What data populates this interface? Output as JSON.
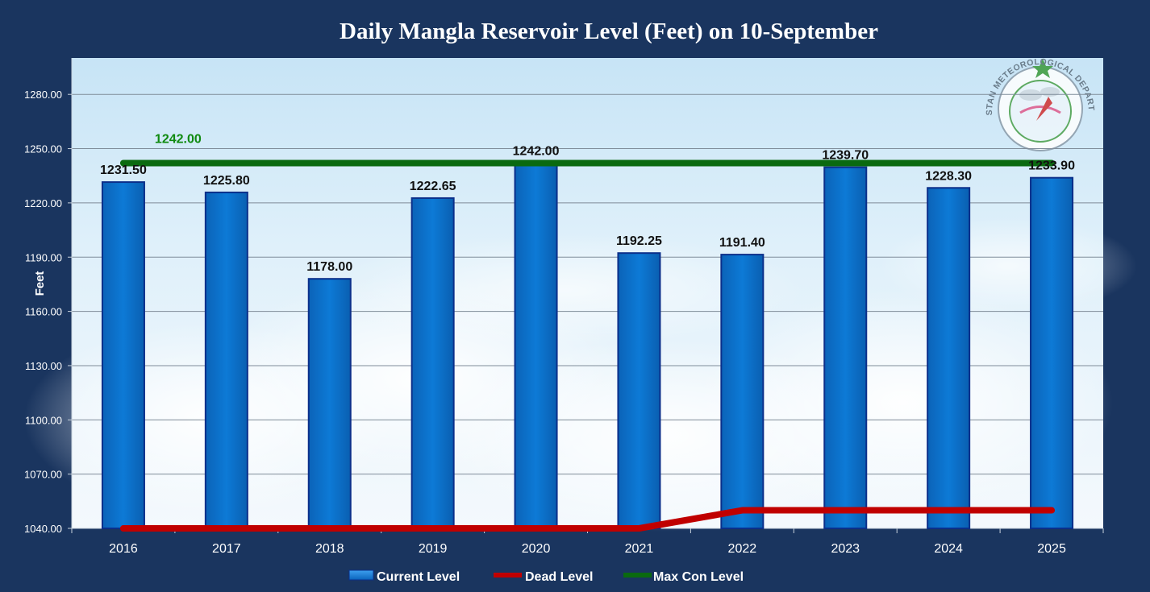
{
  "chart_data": {
    "type": "bar",
    "title": "Daily Mangla Reservoir Level (Feet)  on 10-September",
    "ylabel": "Feet",
    "xlabel": "",
    "ylim": [
      1040,
      1295
    ],
    "yticks": [
      1040,
      1070,
      1100,
      1130,
      1160,
      1190,
      1220,
      1250,
      1280
    ],
    "ytick_labels": [
      "1040.00",
      "1070.00",
      "1100.00",
      "1130.00",
      "1160.00",
      "1190.00",
      "1220.00",
      "1250.00",
      "1280.00"
    ],
    "grid": true,
    "legend_position": "bottom",
    "categories": [
      "2016",
      "2017",
      "2018",
      "2019",
      "2020",
      "2021",
      "2022",
      "2023",
      "2024",
      "2025"
    ],
    "series": [
      {
        "name": "Current Level",
        "kind": "bar",
        "color": "#0a72cc",
        "values": [
          1231.5,
          1225.8,
          1178.0,
          1222.65,
          1242.0,
          1192.25,
          1191.4,
          1239.7,
          1228.3,
          1233.9
        ],
        "labels": [
          "1231.50",
          "1225.80",
          "1178.00",
          "1222.65",
          "1242.00",
          "1192.25",
          "1191.40",
          "1239.70",
          "1228.30",
          "1233.90"
        ]
      },
      {
        "name": "Dead Level",
        "kind": "line",
        "color": "#c00000",
        "values": [
          1040,
          1040,
          1040,
          1040,
          1040,
          1040,
          1050,
          1050,
          1050,
          1050
        ]
      },
      {
        "name": "Max Con Level",
        "kind": "line",
        "color": "#0a6a10",
        "values": [
          1242,
          1242,
          1242,
          1242,
          1242,
          1242,
          1242,
          1242,
          1242,
          1242
        ]
      }
    ],
    "annotations": [
      {
        "text": "1242.00",
        "category": "2017",
        "value": 1242,
        "color": "#0f8a10"
      }
    ]
  },
  "logo": {
    "text": "PAKISTAN METEOROLOGICAL DEPARTMENT"
  }
}
